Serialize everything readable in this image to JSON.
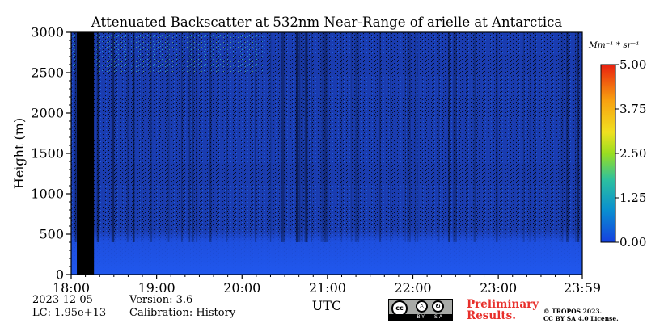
{
  "chart_data": {
    "type": "heatmap",
    "title": "Attenuated Backscatter at 532nm Near-Range of arielle at Antarctica",
    "xlabel": "UTC",
    "ylabel": "Height (m)",
    "x_ticks": [
      "18:00",
      "19:00",
      "20:00",
      "21:00",
      "22:00",
      "23:00",
      "23:59"
    ],
    "y_ticks": [
      "0",
      "500",
      "1000",
      "1500",
      "2000",
      "2500",
      "3000"
    ],
    "xlim": [
      "18:00",
      "23:59"
    ],
    "ylim": [
      0,
      3000
    ],
    "colorbar": {
      "unit": "Mm⁻¹ * sr⁻¹",
      "range": [
        0.0,
        5.0
      ],
      "ticks": [
        "0.00",
        "1.25",
        "2.50",
        "3.75",
        "5.00"
      ],
      "colormap": [
        "#1540e0",
        "#0a8fd0",
        "#2cc0a0",
        "#9ade20",
        "#f0e020",
        "#f8a010",
        "#e82010"
      ]
    },
    "no_data_period": [
      "18:04",
      "18:16"
    ],
    "colors": {
      "background": "#1a3cb0",
      "near_surface": "#1f52e6",
      "no_data": "#000000"
    }
  },
  "footer": {
    "date": "2023-12-05",
    "lc": "LC: 1.95e+13",
    "version": "Version: 3.6",
    "calibration": "Calibration: History",
    "license_badge": [
      "BY",
      "SA"
    ],
    "preliminary_line1": "Preliminary",
    "preliminary_line2": "Results.",
    "copyright_line1": "© TROPOS 2023.",
    "copyright_line2": "CC BY SA 4.0 License."
  }
}
